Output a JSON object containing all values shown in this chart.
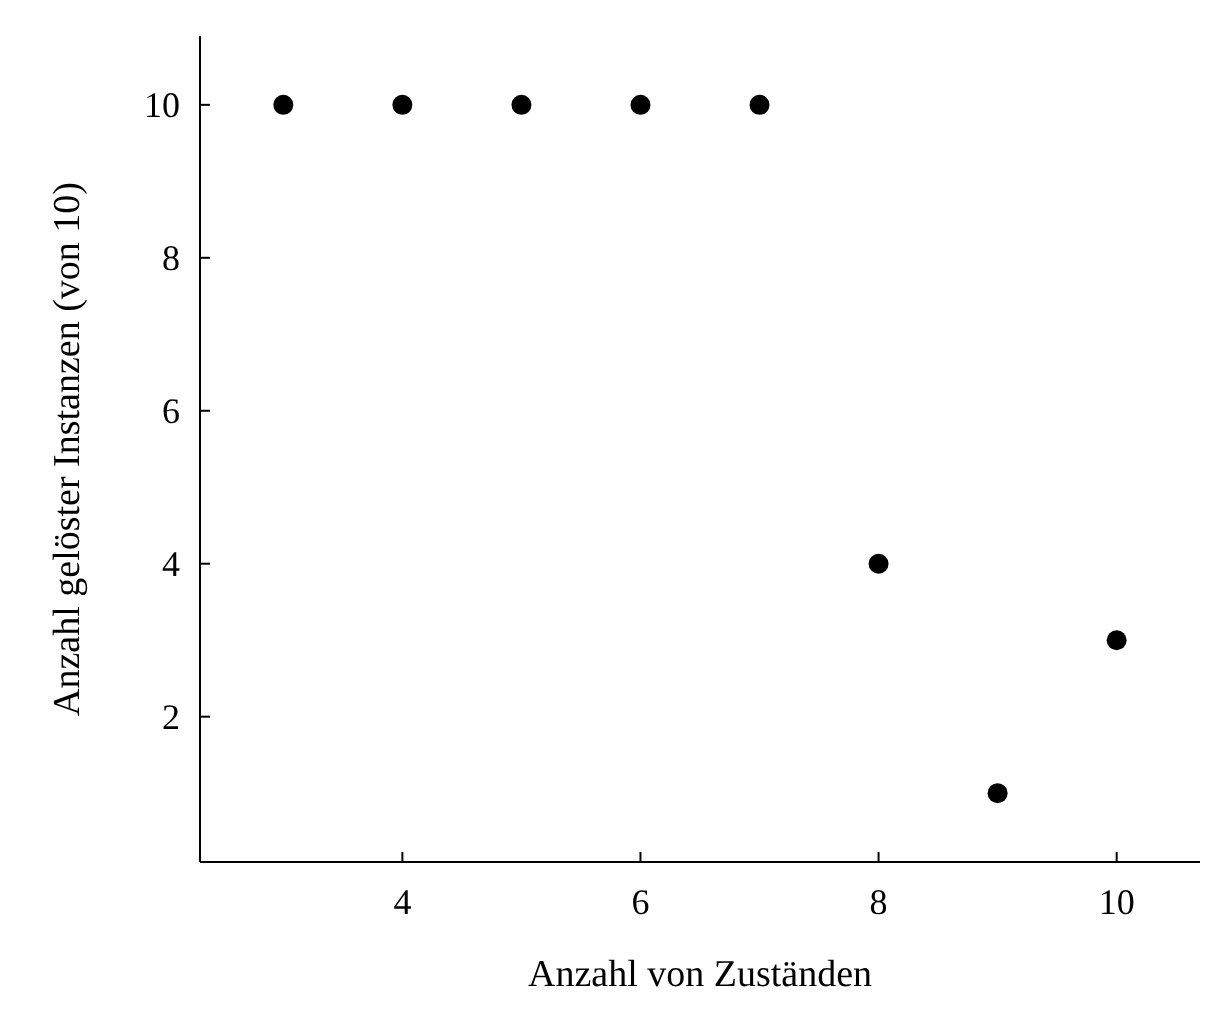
{
  "chart_data": {
    "type": "scatter",
    "xlabel": "Anzahl von Zuständen",
    "ylabel": "Anzahl gelöster Instanzen (von 10)",
    "x": [
      3,
      4,
      5,
      6,
      7,
      8,
      9,
      10
    ],
    "series": [
      {
        "color": "#000000",
        "values": [
          10,
          10,
          10,
          10,
          10,
          4,
          1,
          3
        ]
      }
    ],
    "xlim": [
      2.3,
      10.7
    ],
    "ylim": [
      0.1,
      10.9
    ],
    "xticks": [
      4,
      6,
      8,
      10
    ],
    "yticks": [
      2,
      4,
      6,
      8,
      10
    ],
    "marker": "circle"
  }
}
